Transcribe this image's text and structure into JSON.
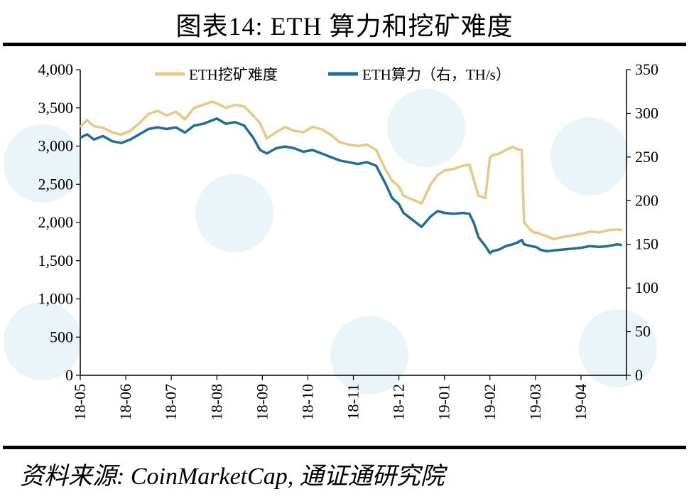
{
  "title": "图表14:  ETH 算力和挖矿难度",
  "source": "资料来源:  CoinMarketCap,  通证通研究院",
  "chart_data": {
    "type": "line",
    "title": "图表14:  ETH 算力和挖矿难度",
    "x_tick_labels": [
      "18-05",
      "18-06",
      "18-07",
      "18-08",
      "18-09",
      "18-10",
      "18-11",
      "18-12",
      "19-01",
      "19-02",
      "19-03",
      "19-04"
    ],
    "x_month_index_range": [
      0,
      12
    ],
    "left_axis": {
      "min": 0,
      "max": 4000,
      "ticks": [
        "0",
        "500",
        "1,000",
        "1,500",
        "2,000",
        "2,500",
        "3,000",
        "3,500",
        "4,000"
      ],
      "tick_values": [
        0,
        500,
        1000,
        1500,
        2000,
        2500,
        3000,
        3500,
        4000
      ]
    },
    "right_axis": {
      "min": 0,
      "max": 350,
      "ticks": [
        "0",
        "50",
        "100",
        "150",
        "200",
        "250",
        "300",
        "350"
      ],
      "tick_values": [
        0,
        50,
        100,
        150,
        200,
        250,
        300,
        350
      ]
    },
    "legend_position": "top",
    "colors": {
      "difficulty": "#E8C984",
      "hashrate": "#1F6D98"
    },
    "series": [
      {
        "name": "ETH挖矿难度",
        "axis": "left",
        "x": [
          0,
          0.15,
          0.3,
          0.5,
          0.7,
          0.9,
          1.1,
          1.3,
          1.5,
          1.7,
          1.9,
          2.1,
          2.3,
          2.5,
          2.7,
          2.9,
          3.0,
          3.2,
          3.4,
          3.6,
          3.8,
          3.95,
          4.1,
          4.3,
          4.5,
          4.7,
          4.9,
          5.1,
          5.3,
          5.5,
          5.7,
          5.9,
          6.1,
          6.3,
          6.5,
          6.7,
          6.85,
          7.0,
          7.1,
          7.3,
          7.5,
          7.7,
          7.85,
          8.0,
          8.2,
          8.4,
          8.55,
          8.65,
          8.75,
          8.9,
          9.0,
          9.05,
          9.2,
          9.35,
          9.5,
          9.6,
          9.7,
          9.75,
          9.9,
          10.0,
          10.05,
          10.1,
          10.25,
          10.4,
          10.6,
          10.8,
          11.0,
          11.2,
          11.4,
          11.6,
          11.8,
          11.9
        ],
        "values": [
          3250,
          3340,
          3260,
          3240,
          3180,
          3150,
          3200,
          3300,
          3420,
          3460,
          3400,
          3450,
          3350,
          3500,
          3540,
          3580,
          3560,
          3500,
          3540,
          3520,
          3400,
          3300,
          3100,
          3180,
          3250,
          3200,
          3180,
          3250,
          3220,
          3150,
          3050,
          3020,
          3000,
          3020,
          2950,
          2700,
          2550,
          2470,
          2350,
          2300,
          2250,
          2500,
          2620,
          2680,
          2700,
          2740,
          2760,
          2550,
          2350,
          2320,
          2850,
          2880,
          2900,
          2950,
          2990,
          2960,
          2950,
          2000,
          1900,
          1860,
          1870,
          1850,
          1820,
          1780,
          1810,
          1830,
          1850,
          1880,
          1870,
          1900,
          1910,
          1900
        ]
      },
      {
        "name": "ETH算力（右，TH/s）",
        "axis": "right",
        "x": [
          0,
          0.15,
          0.3,
          0.5,
          0.7,
          0.9,
          1.1,
          1.3,
          1.5,
          1.7,
          1.9,
          2.1,
          2.3,
          2.5,
          2.7,
          2.9,
          3.0,
          3.2,
          3.4,
          3.6,
          3.8,
          3.95,
          4.1,
          4.3,
          4.5,
          4.7,
          4.9,
          5.1,
          5.3,
          5.5,
          5.7,
          5.9,
          6.1,
          6.3,
          6.5,
          6.7,
          6.85,
          7.0,
          7.1,
          7.3,
          7.5,
          7.7,
          7.85,
          8.0,
          8.2,
          8.4,
          8.55,
          8.65,
          8.75,
          8.9,
          9.0,
          9.05,
          9.2,
          9.35,
          9.5,
          9.6,
          9.7,
          9.75,
          9.9,
          10.0,
          10.05,
          10.1,
          10.25,
          10.4,
          10.6,
          10.8,
          11.0,
          11.2,
          11.4,
          11.6,
          11.8,
          11.9
        ],
        "values": [
          272,
          276,
          270,
          274,
          268,
          266,
          270,
          276,
          282,
          284,
          282,
          284,
          278,
          286,
          288,
          292,
          294,
          288,
          290,
          286,
          272,
          258,
          254,
          260,
          262,
          260,
          256,
          258,
          254,
          250,
          246,
          244,
          242,
          244,
          240,
          220,
          203,
          196,
          186,
          178,
          170,
          182,
          188,
          186,
          185,
          186,
          185,
          174,
          158,
          148,
          140,
          142,
          144,
          148,
          150,
          152,
          155,
          150,
          148,
          147,
          146,
          144,
          142,
          143,
          144,
          145,
          146,
          148,
          147,
          148,
          150,
          149
        ]
      }
    ]
  }
}
